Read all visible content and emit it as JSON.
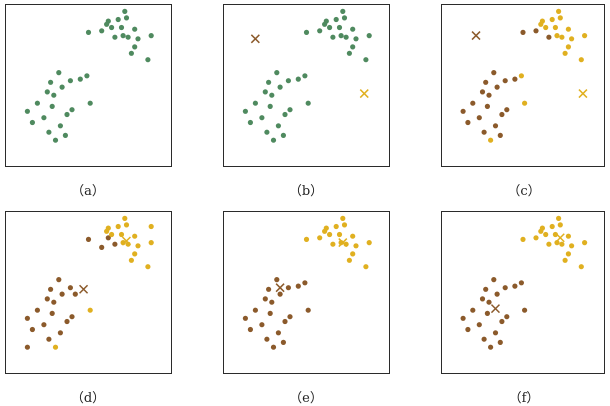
{
  "colors": {
    "green": "#4f8a5f",
    "brown": "#8b5a2b",
    "gold": "#e0b020",
    "frame": "#2b2b2b"
  },
  "chart_data": [
    {
      "type": "scatter",
      "caption": "（a）",
      "xlim": [
        0,
        10
      ],
      "ylim": [
        0,
        10
      ],
      "grid": false,
      "points": {
        "green": [
          [
            2.6,
            2.1
          ],
          [
            3.6,
            1.9
          ],
          [
            2.3,
            3.0
          ],
          [
            3.3,
            2.5
          ],
          [
            4.0,
            3.5
          ],
          [
            5.1,
            3.9
          ],
          [
            2.9,
            4.4
          ],
          [
            3.4,
            4.9
          ],
          [
            3.9,
            5.3
          ],
          [
            4.5,
            5.4
          ],
          [
            3.2,
            5.8
          ],
          [
            4.9,
            5.6
          ],
          [
            1.3,
            3.4
          ],
          [
            1.9,
            3.9
          ],
          [
            2.5,
            4.6
          ],
          [
            1.6,
            2.7
          ],
          [
            2.8,
            3.7
          ],
          [
            3.0,
            1.6
          ],
          [
            2.7,
            5.2
          ],
          [
            3.7,
            3.2
          ],
          [
            5.8,
            8.4
          ],
          [
            6.2,
            9.0
          ],
          [
            6.8,
            9.1
          ],
          [
            7.3,
            9.2
          ],
          [
            7.8,
            8.5
          ],
          [
            8.8,
            8.1
          ],
          [
            7.0,
            8.6
          ],
          [
            7.4,
            8.0
          ],
          [
            8.0,
            7.9
          ],
          [
            7.6,
            7.0
          ],
          [
            8.6,
            6.6
          ],
          [
            6.1,
            8.8
          ],
          [
            7.1,
            8.1
          ],
          [
            6.6,
            8.0
          ],
          [
            7.2,
            9.6
          ],
          [
            6.4,
            8.6
          ],
          [
            7.8,
            7.4
          ],
          [
            5.0,
            8.3
          ]
        ]
      },
      "centroids": {}
    },
    {
      "type": "scatter",
      "caption": "（b）",
      "xlim": [
        0,
        10
      ],
      "ylim": [
        0,
        10
      ],
      "grid": false,
      "points": {
        "green": [
          [
            2.6,
            2.1
          ],
          [
            3.6,
            1.9
          ],
          [
            2.3,
            3.0
          ],
          [
            3.3,
            2.5
          ],
          [
            4.0,
            3.5
          ],
          [
            5.1,
            3.9
          ],
          [
            2.9,
            4.4
          ],
          [
            3.4,
            4.9
          ],
          [
            3.9,
            5.3
          ],
          [
            4.5,
            5.4
          ],
          [
            3.2,
            5.8
          ],
          [
            4.9,
            5.6
          ],
          [
            1.3,
            3.4
          ],
          [
            1.9,
            3.9
          ],
          [
            2.5,
            4.6
          ],
          [
            1.6,
            2.7
          ],
          [
            2.8,
            3.7
          ],
          [
            3.0,
            1.6
          ],
          [
            2.7,
            5.2
          ],
          [
            3.7,
            3.2
          ],
          [
            5.8,
            8.4
          ],
          [
            6.2,
            9.0
          ],
          [
            6.8,
            9.1
          ],
          [
            7.3,
            9.2
          ],
          [
            7.8,
            8.5
          ],
          [
            8.8,
            8.1
          ],
          [
            7.0,
            8.6
          ],
          [
            7.4,
            8.0
          ],
          [
            8.0,
            7.9
          ],
          [
            7.6,
            7.0
          ],
          [
            8.6,
            6.6
          ],
          [
            6.1,
            8.8
          ],
          [
            7.1,
            8.1
          ],
          [
            6.6,
            8.0
          ],
          [
            7.2,
            9.6
          ],
          [
            6.4,
            8.6
          ],
          [
            7.8,
            7.4
          ],
          [
            5.0,
            8.3
          ]
        ]
      },
      "centroids": {
        "brown": [
          1.9,
          7.9
        ],
        "gold": [
          8.5,
          4.5
        ]
      }
    },
    {
      "type": "scatter",
      "caption": "（c）",
      "xlim": [
        0,
        10
      ],
      "ylim": [
        0,
        10
      ],
      "grid": false,
      "points": {
        "brown": [
          [
            2.6,
            2.1
          ],
          [
            3.6,
            1.9
          ],
          [
            2.3,
            3.0
          ],
          [
            3.3,
            2.5
          ],
          [
            4.0,
            3.5
          ],
          [
            2.9,
            4.4
          ],
          [
            3.4,
            4.9
          ],
          [
            3.9,
            5.3
          ],
          [
            4.5,
            5.4
          ],
          [
            3.2,
            5.8
          ],
          [
            1.3,
            3.4
          ],
          [
            1.9,
            3.9
          ],
          [
            2.5,
            4.6
          ],
          [
            1.6,
            2.7
          ],
          [
            2.8,
            3.7
          ],
          [
            2.7,
            5.2
          ],
          [
            3.7,
            3.2
          ],
          [
            5.8,
            8.4
          ],
          [
            6.6,
            8.0
          ],
          [
            5.0,
            8.3
          ]
        ],
        "gold": [
          [
            5.1,
            3.9
          ],
          [
            4.9,
            5.6
          ],
          [
            3.0,
            1.6
          ],
          [
            6.2,
            9.0
          ],
          [
            6.8,
            9.1
          ],
          [
            7.3,
            9.2
          ],
          [
            7.8,
            8.5
          ],
          [
            8.8,
            8.1
          ],
          [
            7.0,
            8.6
          ],
          [
            7.4,
            8.0
          ],
          [
            8.0,
            7.9
          ],
          [
            7.6,
            7.0
          ],
          [
            8.6,
            6.6
          ],
          [
            6.1,
            8.8
          ],
          [
            7.1,
            8.1
          ],
          [
            7.2,
            9.6
          ],
          [
            6.4,
            8.6
          ],
          [
            7.8,
            7.4
          ]
        ]
      },
      "centroids": {
        "brown": [
          2.1,
          8.1
        ],
        "gold": [
          8.7,
          4.5
        ]
      }
    },
    {
      "type": "scatter",
      "caption": "（d）",
      "xlim": [
        0,
        10
      ],
      "ylim": [
        0,
        10
      ],
      "grid": false,
      "points": {
        "brown": [
          [
            2.6,
            2.1
          ],
          [
            1.3,
            1.6
          ],
          [
            2.3,
            3.0
          ],
          [
            3.3,
            2.5
          ],
          [
            4.0,
            3.5
          ],
          [
            2.9,
            4.4
          ],
          [
            3.4,
            4.9
          ],
          [
            3.9,
            5.3
          ],
          [
            4.2,
            4.9
          ],
          [
            3.2,
            5.8
          ],
          [
            1.3,
            3.4
          ],
          [
            1.9,
            3.9
          ],
          [
            2.5,
            4.6
          ],
          [
            1.6,
            2.7
          ],
          [
            2.8,
            3.7
          ],
          [
            2.7,
            5.2
          ],
          [
            3.7,
            3.2
          ],
          [
            5.8,
            7.8
          ],
          [
            6.6,
            8.0
          ],
          [
            5.0,
            8.3
          ],
          [
            6.2,
            8.4
          ]
        ],
        "gold": [
          [
            5.1,
            3.9
          ],
          [
            3.0,
            1.6
          ],
          [
            6.2,
            9.0
          ],
          [
            6.8,
            9.1
          ],
          [
            7.3,
            9.2
          ],
          [
            7.8,
            8.5
          ],
          [
            8.8,
            8.1
          ],
          [
            7.0,
            8.6
          ],
          [
            7.4,
            8.0
          ],
          [
            8.0,
            7.9
          ],
          [
            7.6,
            7.0
          ],
          [
            8.6,
            6.6
          ],
          [
            6.1,
            8.8
          ],
          [
            7.1,
            8.1
          ],
          [
            7.2,
            9.6
          ],
          [
            6.4,
            8.6
          ],
          [
            7.8,
            7.4
          ],
          [
            8.8,
            9.1
          ]
        ]
      },
      "centroids": {
        "brown": [
          4.7,
          5.2
        ],
        "gold": [
          7.3,
          8.2
        ]
      }
    },
    {
      "type": "scatter",
      "caption": "（e）",
      "xlim": [
        0,
        10
      ],
      "ylim": [
        0,
        10
      ],
      "grid": false,
      "points": {
        "brown": [
          [
            2.6,
            2.1
          ],
          [
            3.6,
            1.9
          ],
          [
            2.3,
            3.0
          ],
          [
            3.3,
            2.5
          ],
          [
            4.0,
            3.5
          ],
          [
            5.1,
            3.9
          ],
          [
            2.9,
            4.4
          ],
          [
            3.4,
            4.9
          ],
          [
            3.9,
            5.3
          ],
          [
            4.5,
            5.4
          ],
          [
            3.2,
            5.8
          ],
          [
            4.9,
            5.6
          ],
          [
            1.3,
            3.4
          ],
          [
            1.9,
            3.9
          ],
          [
            2.5,
            4.6
          ],
          [
            1.6,
            2.7
          ],
          [
            2.8,
            3.7
          ],
          [
            3.0,
            1.6
          ],
          [
            2.7,
            5.2
          ],
          [
            3.7,
            3.2
          ]
        ],
        "gold": [
          [
            5.8,
            8.4
          ],
          [
            6.2,
            9.0
          ],
          [
            6.8,
            9.1
          ],
          [
            7.3,
            9.2
          ],
          [
            7.8,
            8.5
          ],
          [
            8.8,
            8.1
          ],
          [
            7.0,
            8.6
          ],
          [
            7.4,
            8.0
          ],
          [
            8.0,
            7.9
          ],
          [
            7.6,
            7.0
          ],
          [
            8.6,
            6.6
          ],
          [
            6.1,
            8.8
          ],
          [
            7.1,
            8.1
          ],
          [
            6.6,
            8.0
          ],
          [
            7.2,
            9.6
          ],
          [
            6.4,
            8.6
          ],
          [
            7.8,
            7.4
          ],
          [
            5.0,
            8.3
          ]
        ]
      },
      "centroids": {
        "brown": [
          3.4,
          5.3
        ],
        "gold": [
          7.2,
          8.1
        ]
      }
    },
    {
      "type": "scatter",
      "caption": "（f）",
      "xlim": [
        0,
        10
      ],
      "ylim": [
        0,
        10
      ],
      "grid": false,
      "points": {
        "brown": [
          [
            2.6,
            2.1
          ],
          [
            3.6,
            1.9
          ],
          [
            2.3,
            3.0
          ],
          [
            3.3,
            2.5
          ],
          [
            4.0,
            3.5
          ],
          [
            5.1,
            3.9
          ],
          [
            2.9,
            4.4
          ],
          [
            3.4,
            4.9
          ],
          [
            3.9,
            5.3
          ],
          [
            4.5,
            5.4
          ],
          [
            3.2,
            5.8
          ],
          [
            4.9,
            5.6
          ],
          [
            1.3,
            3.4
          ],
          [
            1.9,
            3.9
          ],
          [
            2.5,
            4.6
          ],
          [
            1.6,
            2.7
          ],
          [
            2.8,
            3.7
          ],
          [
            3.0,
            1.6
          ],
          [
            2.7,
            5.2
          ],
          [
            3.7,
            3.2
          ]
        ],
        "gold": [
          [
            5.8,
            8.4
          ],
          [
            6.2,
            9.0
          ],
          [
            6.8,
            9.1
          ],
          [
            7.3,
            9.2
          ],
          [
            7.8,
            8.5
          ],
          [
            8.8,
            8.1
          ],
          [
            7.0,
            8.6
          ],
          [
            7.4,
            8.0
          ],
          [
            8.0,
            7.9
          ],
          [
            7.6,
            7.0
          ],
          [
            8.6,
            6.6
          ],
          [
            6.1,
            8.8
          ],
          [
            7.1,
            8.1
          ],
          [
            6.6,
            8.0
          ],
          [
            7.2,
            9.6
          ],
          [
            6.4,
            8.6
          ],
          [
            7.8,
            7.4
          ],
          [
            5.0,
            8.3
          ]
        ]
      },
      "centroids": {
        "brown": [
          3.3,
          4.0
        ],
        "gold": [
          7.3,
          8.4
        ]
      }
    }
  ]
}
